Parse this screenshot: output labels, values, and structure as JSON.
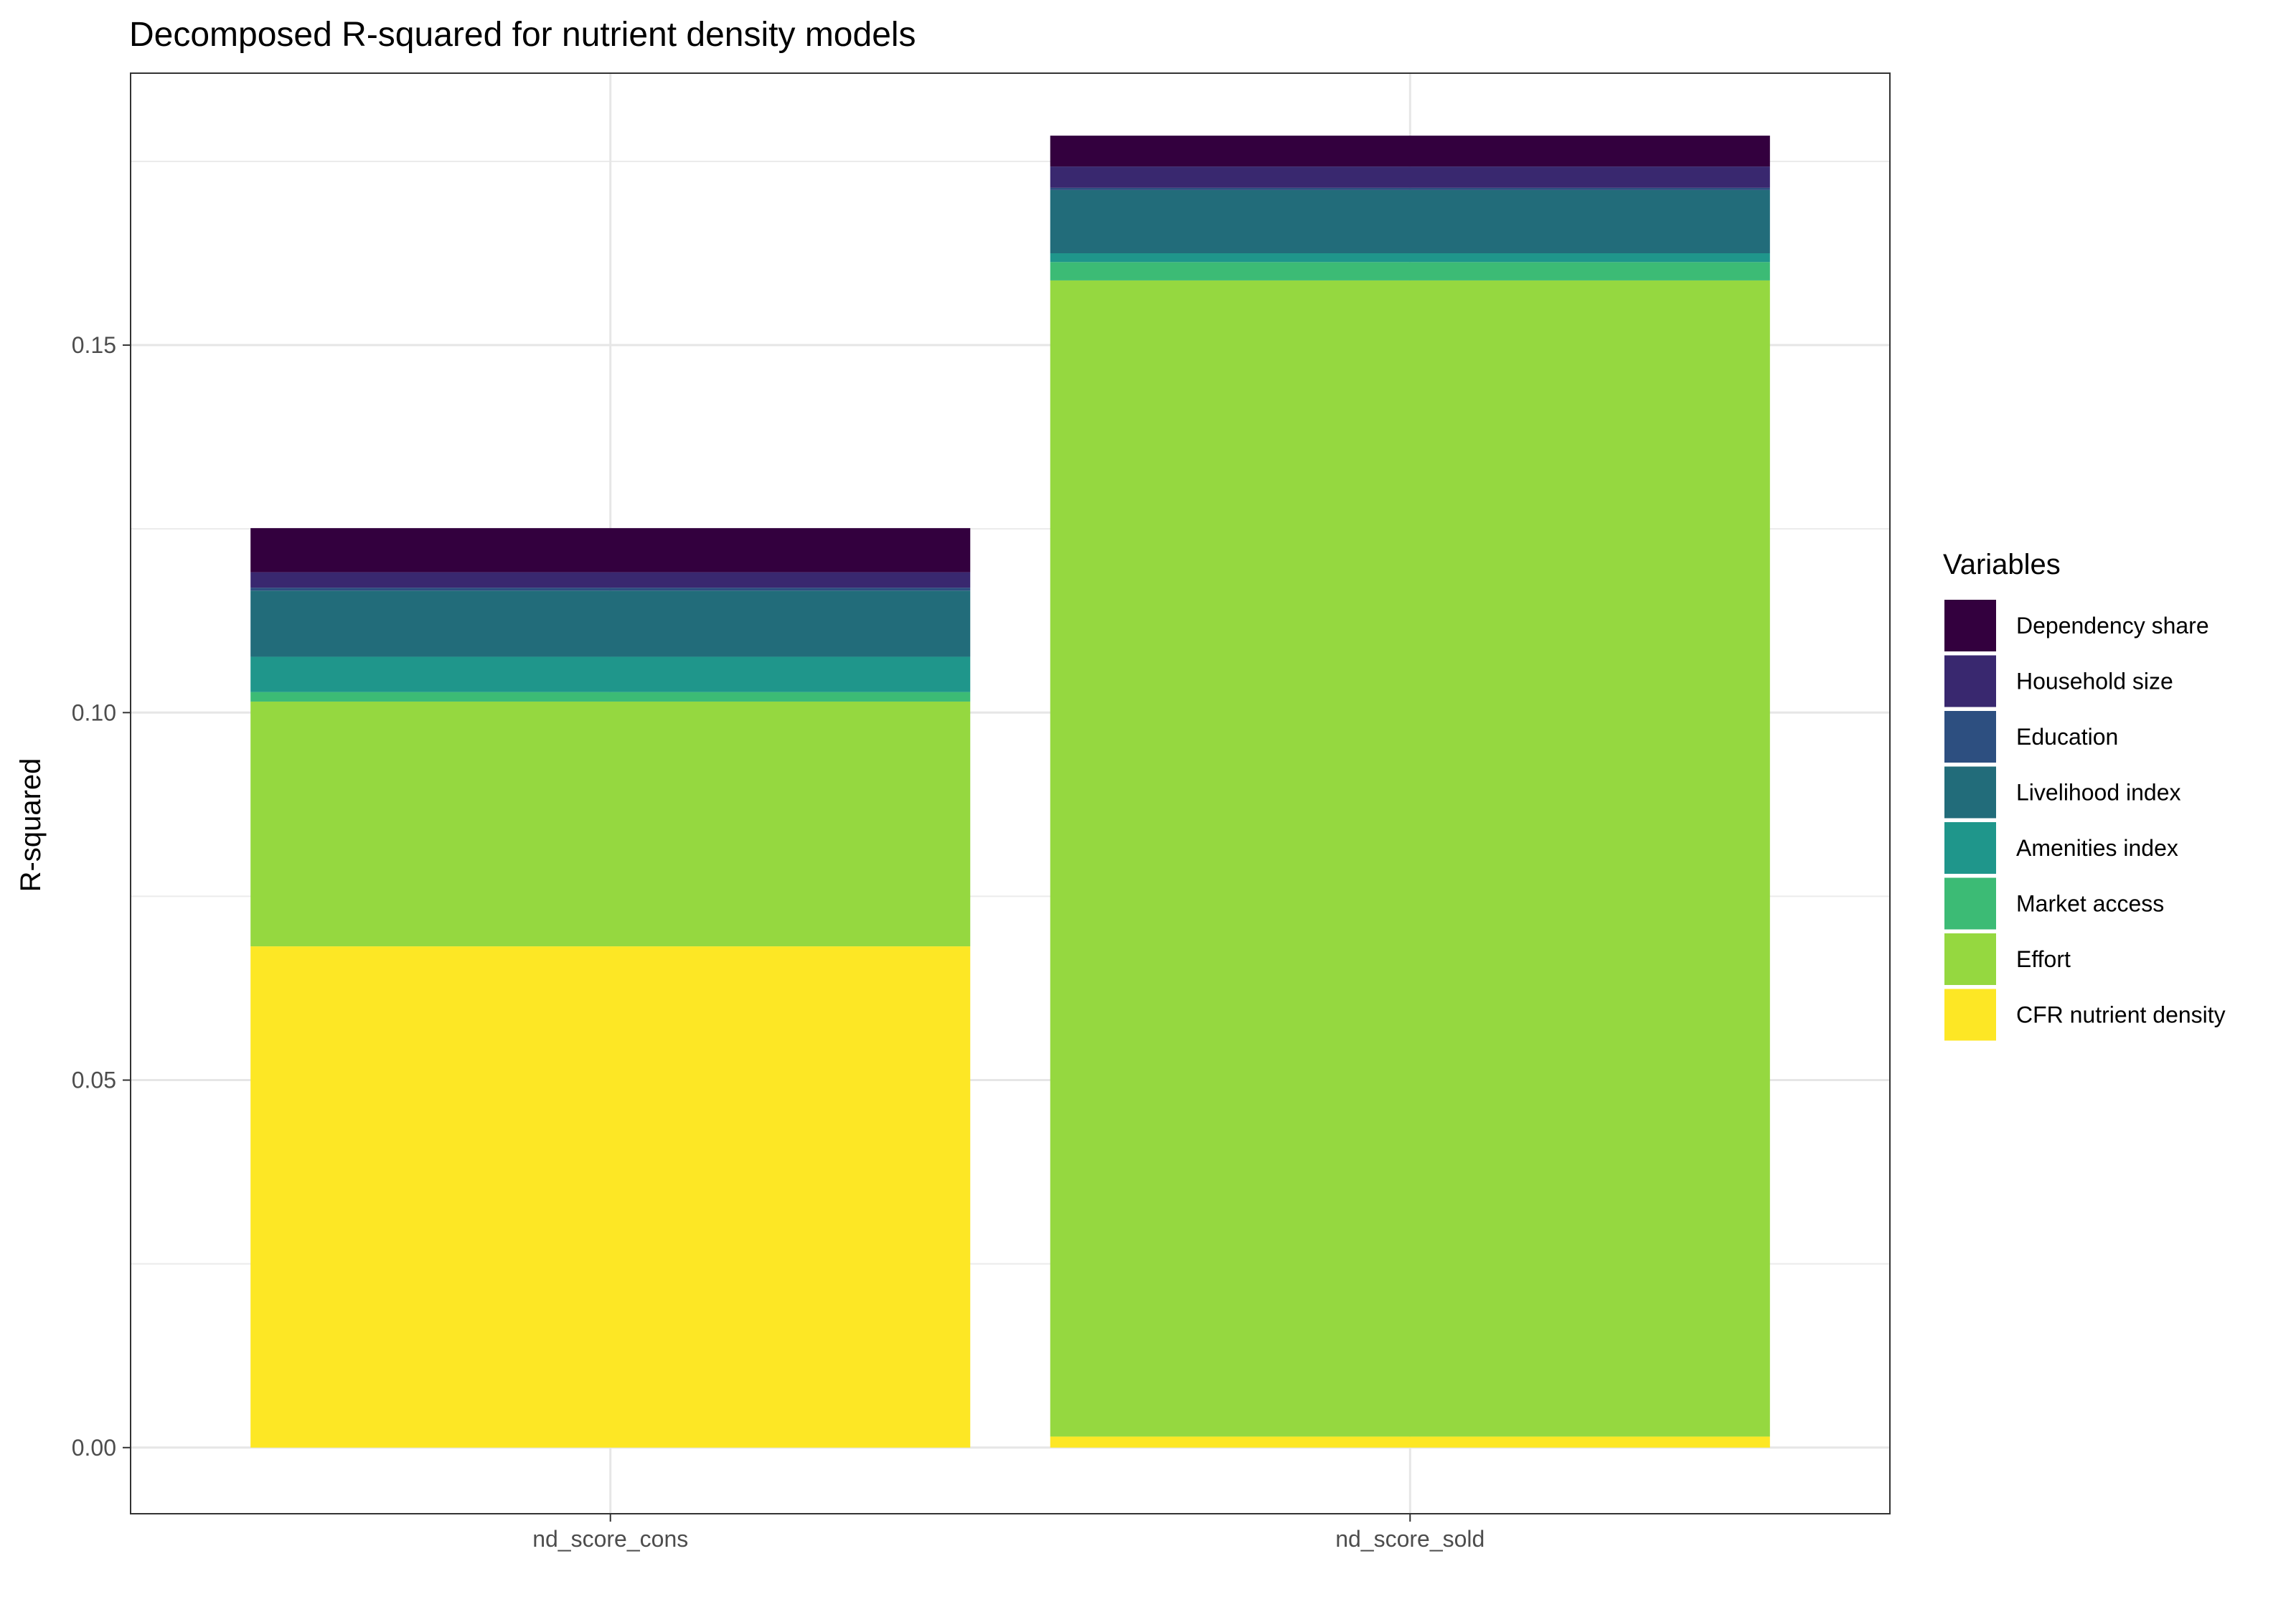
{
  "chart_data": {
    "type": "bar",
    "stacked": true,
    "title": "Decomposed R-squared for nutrient density models",
    "xlabel": "",
    "ylabel": "R-squared",
    "categories": [
      "nd_score_cons",
      "nd_score_sold"
    ],
    "ylim": [
      -0.009,
      0.187
    ],
    "yticks": [
      0.0,
      0.05,
      0.1,
      0.15
    ],
    "ytick_labels": [
      "0.00",
      "0.05",
      "0.10",
      "0.15"
    ],
    "grid": true,
    "legend": {
      "title": "Variables",
      "position": "right"
    },
    "series": [
      {
        "name": "CFR nutrient density",
        "color": "#FDE725",
        "values": [
          0.0682,
          0.0015
        ]
      },
      {
        "name": "Effort",
        "color": "#95D840",
        "values": [
          0.0333,
          0.1573
        ]
      },
      {
        "name": "Market access",
        "color": "#3CBB75",
        "values": [
          0.0013,
          0.0025
        ]
      },
      {
        "name": "Amenities index",
        "color": "#1F968B",
        "values": [
          0.0048,
          0.0012
        ]
      },
      {
        "name": "Livelihood index",
        "color": "#226C7A",
        "values": [
          0.009,
          0.0086
        ]
      },
      {
        "name": "Education",
        "color": "#2D4F80",
        "values": [
          0.0004,
          0.0003
        ]
      },
      {
        "name": "Household size",
        "color": "#39286F",
        "values": [
          0.0021,
          0.0029
        ]
      },
      {
        "name": "Dependency share",
        "color": "#33003E",
        "values": [
          0.006,
          0.0042
        ]
      }
    ]
  }
}
